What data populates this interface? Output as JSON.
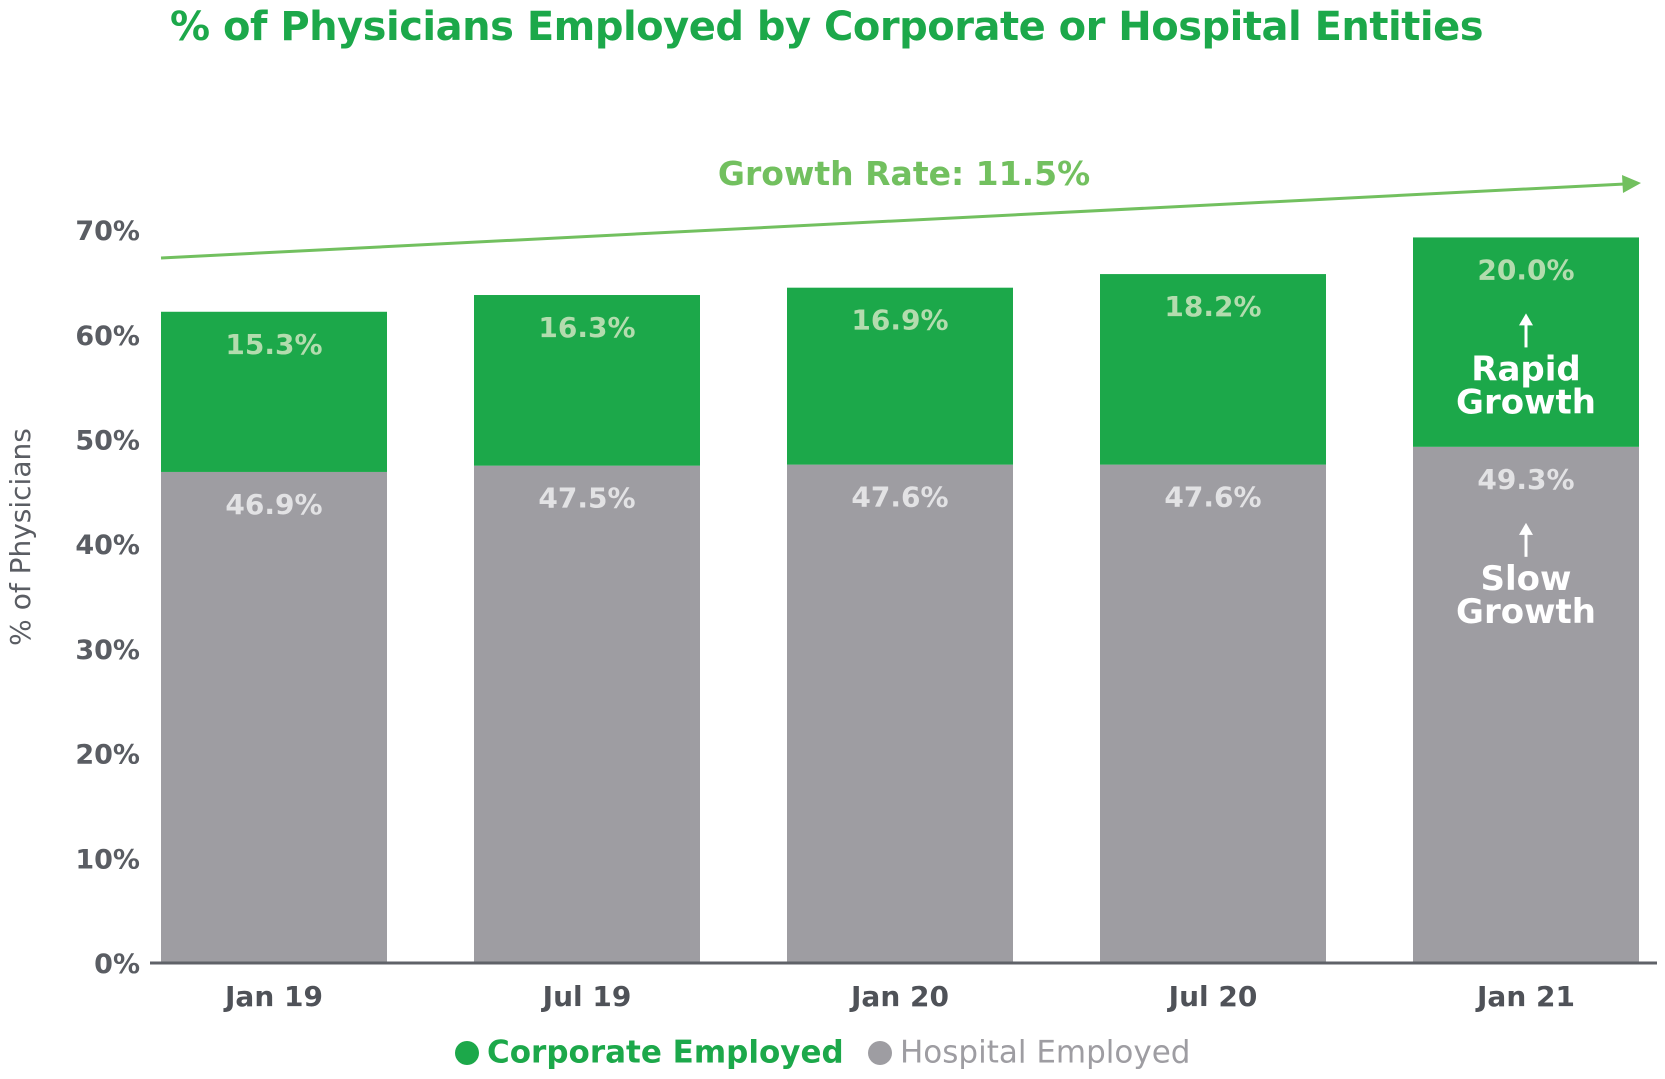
{
  "chart_data": {
    "type": "bar",
    "stacked": true,
    "title": "% of Physicians Employed by Corporate or Hospital Entities",
    "ylabel": "% of Physicians",
    "xlabel": "",
    "ylim": [
      0,
      70
    ],
    "yticks": [
      "0%",
      "10%",
      "20%",
      "30%",
      "40%",
      "50%",
      "60%",
      "70%"
    ],
    "grid": false,
    "categories": [
      "Jan 19",
      "Jul 19",
      "Jan 20",
      "Jul 20",
      "Jan 21"
    ],
    "series": [
      {
        "name": "Hospital Employed",
        "values": [
          46.9,
          47.5,
          47.6,
          47.6,
          49.3
        ],
        "labels": [
          "46.9%",
          "47.5%",
          "47.6%",
          "47.6%",
          "49.3%"
        ],
        "color": "#9e9da2"
      },
      {
        "name": "Corporate Employed",
        "values": [
          15.3,
          16.3,
          16.9,
          18.2,
          20.0
        ],
        "labels": [
          "15.3%",
          "16.3%",
          "16.9%",
          "18.2%",
          "20.0%"
        ],
        "color": "#1ca84a"
      }
    ],
    "annotations": {
      "growth_rate": "Growth Rate: 11.5%",
      "rapid_growth": [
        "Rapid",
        "Growth"
      ],
      "slow_growth": [
        "Slow",
        "Growth"
      ]
    },
    "legend": {
      "placement": "bottom",
      "items": [
        "Corporate Employed",
        "Hospital Employed"
      ]
    }
  }
}
